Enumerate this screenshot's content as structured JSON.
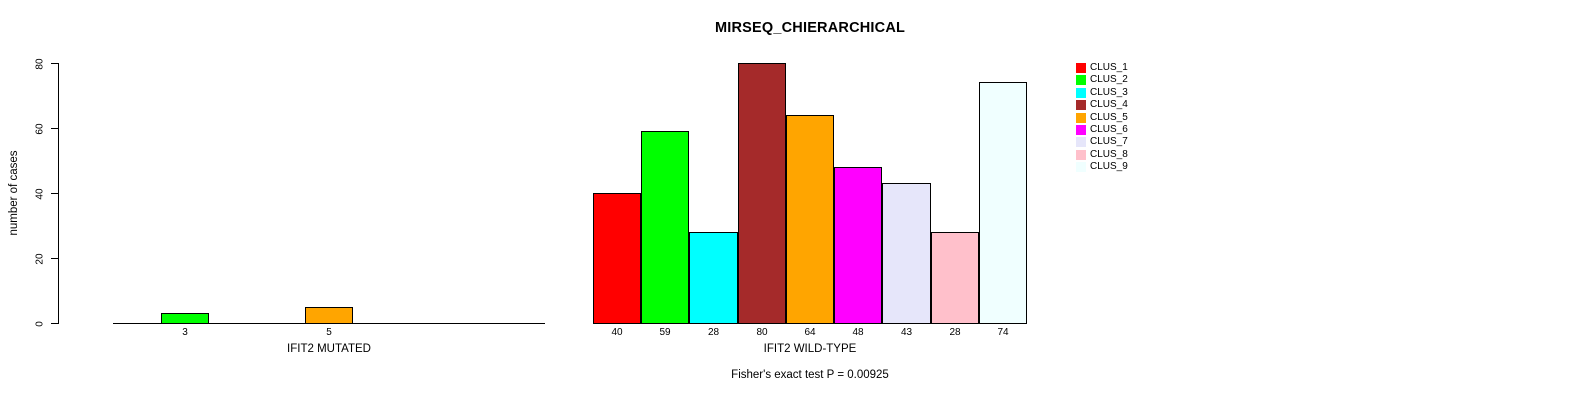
{
  "chart_data": {
    "type": "bar",
    "title": "MIRSEQ_CHIERARCHICAL",
    "ylabel": "number of cases",
    "ylim": [
      0,
      80
    ],
    "yticks": [
      0,
      20,
      40,
      60,
      80
    ],
    "grid": false,
    "legend_position": "right",
    "categories": [
      "CLUS_1",
      "CLUS_2",
      "CLUS_3",
      "CLUS_4",
      "CLUS_5",
      "CLUS_6",
      "CLUS_7",
      "CLUS_8",
      "CLUS_9"
    ],
    "colors": [
      "#FF0000",
      "#00FF00",
      "#00FFFF",
      "#A52A2A",
      "#FFA500",
      "#FF00FF",
      "#E6E6FA",
      "#FFC0CB",
      "#F0FFFF"
    ],
    "series": [
      {
        "name": "IFIT2 MUTATED",
        "values": [
          0,
          3,
          0,
          0,
          5,
          0,
          0,
          0,
          0
        ]
      },
      {
        "name": "IFIT2 WILD-TYPE",
        "values": [
          40,
          59,
          28,
          80,
          64,
          48,
          43,
          28,
          74
        ]
      }
    ],
    "bar_value_labels": {
      "IFIT2 MUTATED": [
        "3",
        "5"
      ],
      "IFIT2 WILD-TYPE": [
        "40",
        "59",
        "28",
        "80",
        "64",
        "48",
        "43",
        "28",
        "74"
      ]
    },
    "annotation": "Fisher's exact test P = 0.00925"
  }
}
